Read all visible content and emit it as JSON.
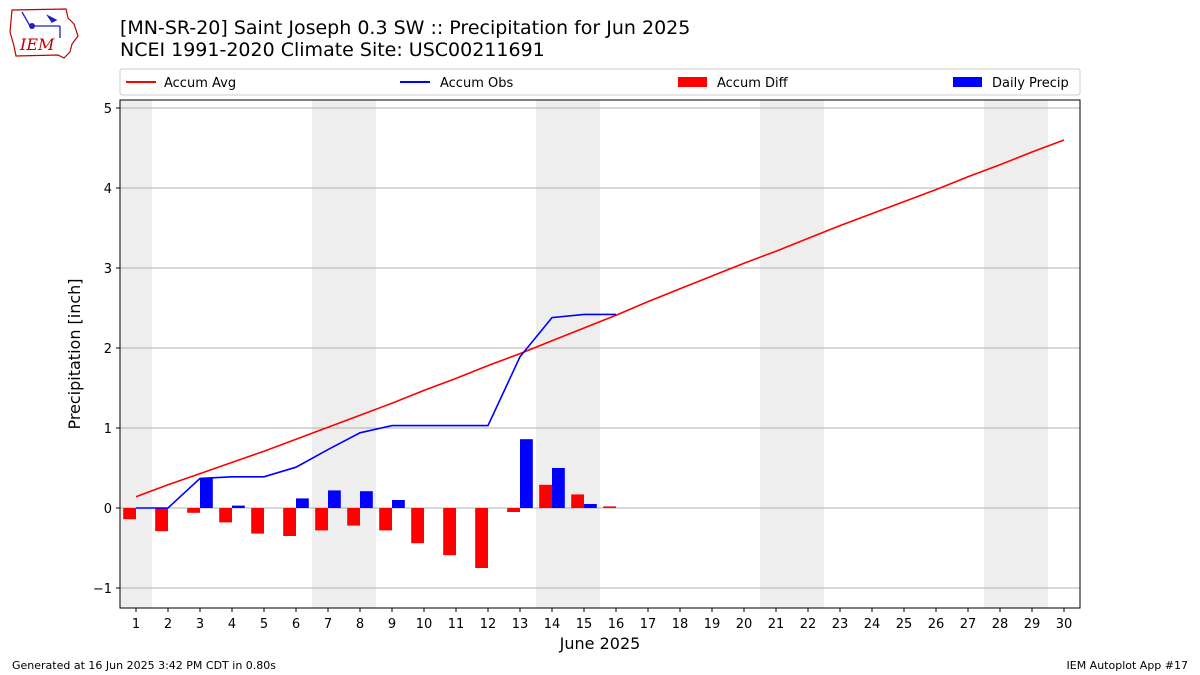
{
  "header": {
    "title_line1": "[MN-SR-20] Saint Joseph 0.3 SW :: Precipitation for Jun 2025",
    "title_line2": "NCEI 1991-2020 Climate Site: USC00211691",
    "logo_text": "IEM"
  },
  "footer": {
    "generated": "Generated at 16 Jun 2025 3:42 PM CDT in 0.80s",
    "app": "IEM Autoplot App #17"
  },
  "chart_data": {
    "type": "bar",
    "xlabel": "June 2025",
    "ylabel": "Precipitation [inch]",
    "xlim": [
      0.5,
      30.5
    ],
    "ylim": [
      -1.25,
      5.1
    ],
    "x_ticks": [
      1,
      2,
      3,
      4,
      5,
      6,
      7,
      8,
      9,
      10,
      11,
      12,
      13,
      14,
      15,
      16,
      17,
      18,
      19,
      20,
      21,
      22,
      23,
      24,
      25,
      26,
      27,
      28,
      29,
      30
    ],
    "y_ticks": [
      -1,
      0,
      1,
      2,
      3,
      4,
      5
    ],
    "grid": "horizontal",
    "legend_position": "top",
    "weekend_shading": [
      [
        0.5,
        1.5
      ],
      [
        6.5,
        8.5
      ],
      [
        13.5,
        15.5
      ],
      [
        20.5,
        22.5
      ],
      [
        27.5,
        29.5
      ]
    ],
    "colors": {
      "avg": "#ff0000",
      "obs": "#0000ff",
      "diff": "#ff0000",
      "daily": "#0000ff",
      "shade": "#eeeeee",
      "grid": "#b0b0b0"
    },
    "series": [
      {
        "name": "Accum Avg",
        "kind": "line",
        "x": [
          1,
          2,
          3,
          4,
          5,
          6,
          7,
          8,
          9,
          10,
          11,
          12,
          13,
          14,
          15,
          16,
          17,
          18,
          19,
          20,
          21,
          22,
          23,
          24,
          25,
          26,
          27,
          28,
          29,
          30
        ],
        "values": [
          0.14,
          0.29,
          0.43,
          0.57,
          0.71,
          0.86,
          1.01,
          1.16,
          1.31,
          1.47,
          1.62,
          1.78,
          1.93,
          2.09,
          2.25,
          2.41,
          2.58,
          2.74,
          2.9,
          3.06,
          3.21,
          3.37,
          3.53,
          3.68,
          3.83,
          3.98,
          4.14,
          4.29,
          4.45,
          4.6
        ]
      },
      {
        "name": "Accum Obs",
        "kind": "line",
        "x": [
          1,
          2,
          3,
          4,
          5,
          6,
          7,
          8,
          9,
          10,
          11,
          12,
          13,
          14,
          15,
          16
        ],
        "values": [
          0.0,
          0.0,
          0.37,
          0.39,
          0.39,
          0.51,
          0.73,
          0.94,
          1.03,
          1.03,
          1.03,
          1.03,
          1.89,
          2.38,
          2.42,
          2.42
        ]
      },
      {
        "name": "Accum Diff",
        "kind": "bar",
        "x": [
          1,
          2,
          3,
          4,
          5,
          6,
          7,
          8,
          9,
          10,
          11,
          12,
          13,
          14,
          15,
          16
        ],
        "values": [
          -0.14,
          -0.29,
          -0.06,
          -0.18,
          -0.32,
          -0.35,
          -0.28,
          -0.22,
          -0.28,
          -0.44,
          -0.59,
          -0.75,
          -0.05,
          0.29,
          0.17,
          0.02
        ]
      },
      {
        "name": "Daily Precip",
        "kind": "bar",
        "x": [
          1,
          2,
          3,
          4,
          5,
          6,
          7,
          8,
          9,
          10,
          11,
          12,
          13,
          14,
          15,
          16
        ],
        "values": [
          0.0,
          0.0,
          0.37,
          0.03,
          0.0,
          0.12,
          0.22,
          0.21,
          0.1,
          0.0,
          0.0,
          0.0,
          0.86,
          0.5,
          0.05,
          0.0
        ]
      }
    ]
  }
}
